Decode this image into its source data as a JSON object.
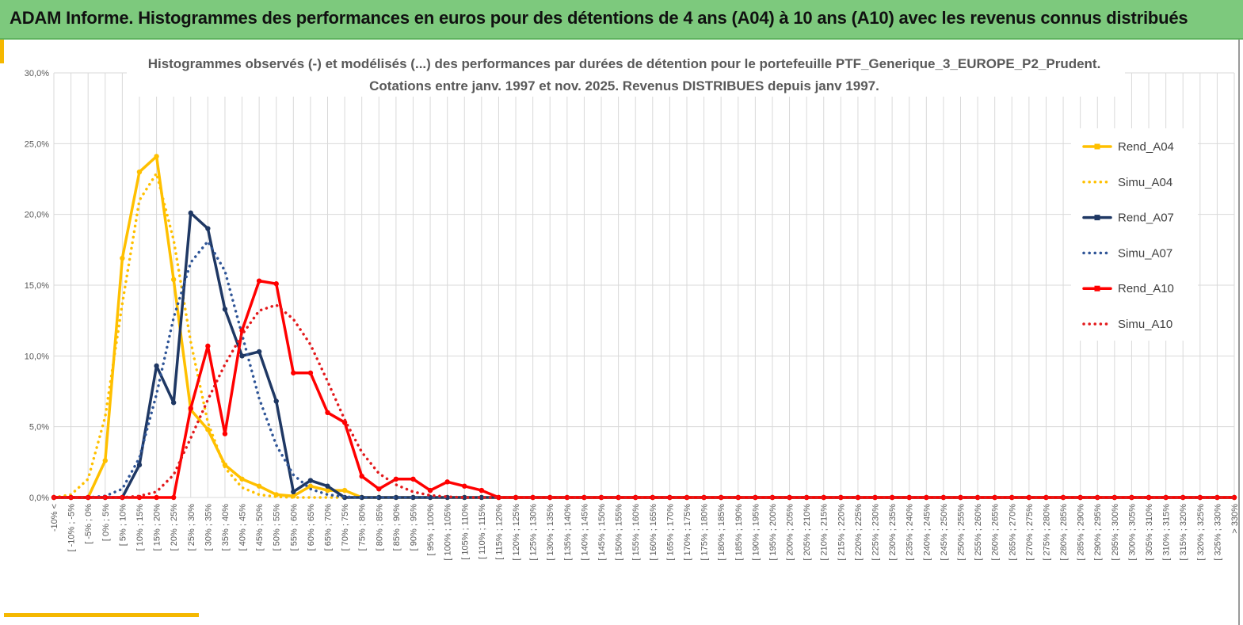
{
  "header": {
    "title": "ADAM Informe. Histogrammes des performances en euros pour des détentions de 4 ans (A04) à 10 ans (A10) avec les revenus connus distribués"
  },
  "colors": {
    "banner": "#7dc97d",
    "accent": "#f5b800",
    "A04": "#ffc000",
    "A07": "#1f3864",
    "A10": "#ff0000",
    "simu_A07": "#2f5597",
    "simu_A10": "#e31a1c"
  },
  "chart_data": {
    "type": "line",
    "title_lines": [
      "Histogrammes observés (-) et modélisés (...) des performances par durées de détention pour le portefeuille PTF_Generique_3_EUROPE_P2_Prudent.",
      "Cotations entre janv. 1997 et nov. 2025. Revenus DISTRIBUES depuis janv 1997."
    ],
    "y_ticks": [
      "0,0%",
      "5,0%",
      "10,0%",
      "15,0%",
      "20,0%",
      "25,0%",
      "30,0%"
    ],
    "ylim": [
      0,
      30
    ],
    "y_unit": "%",
    "grid": true,
    "legend_position": "right",
    "categories": [
      "-10% <",
      "[ -10% ; -5%",
      "[ -5% ; 0%",
      "[ 0% ; 5%",
      "[ 5% ; 10%",
      "[ 10% ; 15%",
      "[ 15% ; 20%",
      "[ 20% ; 25%",
      "[ 25% ; 30%",
      "[ 30% ; 35%",
      "[ 35% ; 40%",
      "[ 40% ; 45%",
      "[ 45% ; 50%",
      "[ 50% ; 55%",
      "[ 55% ; 60%",
      "[ 60% ; 65%",
      "[ 65% ; 70%",
      "[ 70% ; 75%",
      "[ 75% ; 80%",
      "[ 80% ; 85%",
      "[ 85% ; 90%",
      "[ 90% ; 95%",
      "[ 95% ; 100%",
      "[ 100% ; 105%",
      "[ 105% ; 110%",
      "[ 110% ; 115%",
      "[ 115% ; 120%",
      "[ 120% ; 125%",
      "[ 125% ; 130%",
      "[ 130% ; 135%",
      "[ 135% ; 140%",
      "[ 140% ; 145%",
      "[ 145% ; 150%",
      "[ 150% ; 155%",
      "[ 155% ; 160%",
      "[ 160% ; 165%",
      "[ 165% ; 170%",
      "[ 170% ; 175%",
      "[ 175% ; 180%",
      "[ 180% ; 185%",
      "[ 185% ; 190%",
      "[ 190% ; 195%",
      "[ 195% ; 200%",
      "[ 200% ; 205%",
      "[ 205% ; 210%",
      "[ 210% ; 215%",
      "[ 215% ; 220%",
      "[ 220% ; 225%",
      "[ 225% ; 230%",
      "[ 230% ; 235%",
      "[ 235% ; 240%",
      "[ 240% ; 245%",
      "[ 245% ; 250%",
      "[ 250% ; 255%",
      "[ 255% ; 260%",
      "[ 260% ; 265%",
      "[ 265% ; 270%",
      "[ 270% ; 275%",
      "[ 275% ; 280%",
      "[ 280% ; 285%",
      "[ 285% ; 290%",
      "[ 290% ; 295%",
      "[ 295% ; 300%",
      "[ 300% ; 305%",
      "[ 305% ; 310%",
      "[ 310% ; 315%",
      "[ 315% ; 320%",
      "[ 320% ; 325%",
      "[ 325% ; 330%",
      "> 330%"
    ],
    "series": [
      {
        "name": "Rend_A04",
        "style": "solid",
        "color": "#ffc000",
        "values": [
          0,
          0,
          0,
          2.6,
          16.9,
          23.0,
          24.1,
          15.4,
          6.2,
          4.8,
          2.3,
          1.3,
          0.8,
          0.2,
          0.1,
          0.8,
          0.5,
          0.5,
          0,
          0,
          0,
          0,
          0,
          0,
          0,
          0,
          0,
          0,
          0,
          0,
          0,
          0,
          0,
          0,
          0,
          0,
          0,
          0,
          0,
          0,
          0,
          0,
          0,
          0,
          0,
          0,
          0,
          0,
          0,
          0,
          0,
          0,
          0,
          0,
          0,
          0,
          0,
          0,
          0,
          0,
          0,
          0,
          0,
          0,
          0,
          0,
          0,
          0,
          0,
          0
        ]
      },
      {
        "name": "Simu_A04",
        "style": "dotted",
        "color": "#ffc000",
        "values": [
          0,
          0.2,
          1.3,
          5.7,
          13.7,
          21.0,
          22.9,
          18.2,
          11.0,
          5.3,
          2.1,
          0.7,
          0.2,
          0.05,
          0,
          0,
          0,
          0,
          0,
          0,
          0,
          0,
          0,
          0,
          0,
          0,
          0,
          0,
          0,
          0,
          0,
          0,
          0,
          0,
          0,
          0,
          0,
          0,
          0,
          0,
          0,
          0,
          0,
          0,
          0,
          0,
          0,
          0,
          0,
          0,
          0,
          0,
          0,
          0,
          0,
          0,
          0,
          0,
          0,
          0,
          0,
          0,
          0,
          0,
          0,
          0,
          0,
          0,
          0,
          0
        ]
      },
      {
        "name": "Rend_A07",
        "style": "solid",
        "color": "#1f3864",
        "values": [
          0,
          0,
          0,
          0,
          0,
          2.3,
          9.3,
          6.7,
          20.1,
          19.0,
          13.3,
          10.0,
          10.3,
          6.8,
          0.4,
          1.2,
          0.8,
          0,
          0,
          0,
          0,
          0,
          0,
          0,
          0,
          0,
          0,
          0,
          0,
          0,
          0,
          0,
          0,
          0,
          0,
          0,
          0,
          0,
          0,
          0,
          0,
          0,
          0,
          0,
          0,
          0,
          0,
          0,
          0,
          0,
          0,
          0,
          0,
          0,
          0,
          0,
          0,
          0,
          0,
          0,
          0,
          0,
          0,
          0,
          0,
          0,
          0,
          0,
          0,
          0
        ]
      },
      {
        "name": "Simu_A07",
        "style": "dotted",
        "color": "#2f5597",
        "values": [
          0,
          0,
          0,
          0.1,
          0.6,
          2.8,
          7.3,
          12.7,
          16.6,
          18.1,
          16.0,
          11.5,
          7.0,
          3.7,
          1.6,
          0.6,
          0.2,
          0.05,
          0,
          0,
          0,
          0,
          0,
          0,
          0,
          0,
          0,
          0,
          0,
          0,
          0,
          0,
          0,
          0,
          0,
          0,
          0,
          0,
          0,
          0,
          0,
          0,
          0,
          0,
          0,
          0,
          0,
          0,
          0,
          0,
          0,
          0,
          0,
          0,
          0,
          0,
          0,
          0,
          0,
          0,
          0,
          0,
          0,
          0,
          0,
          0,
          0,
          0,
          0,
          0
        ]
      },
      {
        "name": "Rend_A10",
        "style": "solid",
        "color": "#ff0000",
        "values": [
          0,
          0,
          0,
          0,
          0,
          0,
          0,
          0,
          6.3,
          10.7,
          4.5,
          11.8,
          15.3,
          15.1,
          8.8,
          8.8,
          6.0,
          5.3,
          1.5,
          0.6,
          1.3,
          1.3,
          0.5,
          1.1,
          0.8,
          0.5,
          0,
          0,
          0,
          0,
          0,
          0,
          0,
          0,
          0,
          0,
          0,
          0,
          0,
          0,
          0,
          0,
          0,
          0,
          0,
          0,
          0,
          0,
          0,
          0,
          0,
          0,
          0,
          0,
          0,
          0,
          0,
          0,
          0,
          0,
          0,
          0,
          0,
          0,
          0,
          0,
          0,
          0,
          0,
          0
        ]
      },
      {
        "name": "Simu_A10",
        "style": "dotted",
        "color": "#e31a1c",
        "values": [
          0,
          0,
          0,
          0,
          0,
          0.1,
          0.4,
          1.6,
          4.2,
          6.9,
          9.4,
          11.5,
          13.2,
          13.6,
          12.6,
          10.8,
          8.2,
          5.5,
          3.2,
          1.7,
          0.9,
          0.4,
          0.15,
          0.05,
          0,
          0,
          0,
          0,
          0,
          0,
          0,
          0,
          0,
          0,
          0,
          0,
          0,
          0,
          0,
          0,
          0,
          0,
          0,
          0,
          0,
          0,
          0,
          0,
          0,
          0,
          0,
          0,
          0,
          0,
          0,
          0,
          0,
          0,
          0,
          0,
          0,
          0,
          0,
          0,
          0,
          0,
          0,
          0,
          0,
          0
        ]
      }
    ]
  }
}
